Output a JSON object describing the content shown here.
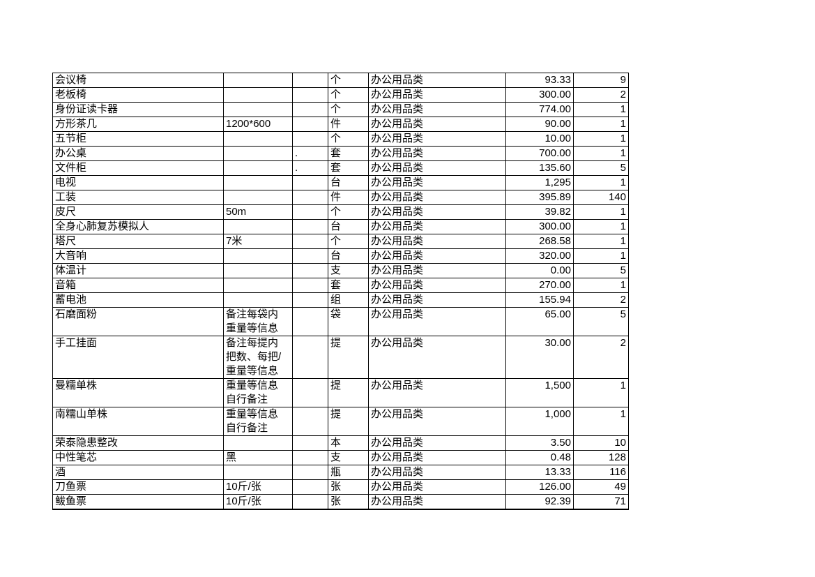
{
  "page": {
    "background_color": "#ffffff",
    "text_color": "#000000",
    "border_color": "#000000"
  },
  "table": {
    "column_keys": [
      "name",
      "spec",
      "note",
      "unit",
      "category",
      "unit_price",
      "quantity"
    ],
    "rows": [
      {
        "name": "会议椅",
        "spec": "",
        "note": "",
        "unit": "个",
        "category": "办公用品类",
        "unit_price": "93.33",
        "quantity": "9"
      },
      {
        "name": "老板椅",
        "spec": "",
        "note": "",
        "unit": "个",
        "category": "办公用品类",
        "unit_price": "300.00",
        "quantity": "2"
      },
      {
        "name": "身份证读卡器",
        "spec": "",
        "note": "",
        "unit": "个",
        "category": "办公用品类",
        "unit_price": "774.00",
        "quantity": "1"
      },
      {
        "name": "方形茶几",
        "spec": "1200*600",
        "note": "",
        "unit": "件",
        "category": "办公用品类",
        "unit_price": "90.00",
        "quantity": "1"
      },
      {
        "name": "五节柜",
        "spec": "",
        "note": "",
        "unit": "个",
        "category": "办公用品类",
        "unit_price": "10.00",
        "quantity": "1"
      },
      {
        "name": "办公桌",
        "spec": "",
        "note": ".",
        "unit": "套",
        "category": "办公用品类",
        "unit_price": "700.00",
        "quantity": "1"
      },
      {
        "name": "文件柜",
        "spec": "",
        "note": ".",
        "unit": "套",
        "category": "办公用品类",
        "unit_price": "135.60",
        "quantity": "5"
      },
      {
        "name": "电视",
        "spec": "",
        "note": "",
        "unit": "台",
        "category": "办公用品类",
        "unit_price": "1,295",
        "quantity": "1"
      },
      {
        "name": "工装",
        "spec": "",
        "note": "",
        "unit": "件",
        "category": "办公用品类",
        "unit_price": "395.89",
        "quantity": "140"
      },
      {
        "name": "皮尺",
        "spec": "50m",
        "note": "",
        "unit": "个",
        "category": "办公用品类",
        "unit_price": "39.82",
        "quantity": "1"
      },
      {
        "name": "全身心肺复苏模拟人",
        "spec": "",
        "note": "",
        "unit": "台",
        "category": "办公用品类",
        "unit_price": "300.00",
        "quantity": "1"
      },
      {
        "name": "塔尺",
        "spec": "7米",
        "note": "",
        "unit": "个",
        "category": "办公用品类",
        "unit_price": "268.58",
        "quantity": "1"
      },
      {
        "name": "大音响",
        "spec": "",
        "note": "",
        "unit": "台",
        "category": "办公用品类",
        "unit_price": "320.00",
        "quantity": "1"
      },
      {
        "name": "体温计",
        "spec": "",
        "note": "",
        "unit": "支",
        "category": "办公用品类",
        "unit_price": "0.00",
        "quantity": "5"
      },
      {
        "name": "音箱",
        "spec": "",
        "note": "",
        "unit": "套",
        "category": "办公用品类",
        "unit_price": "270.00",
        "quantity": "1"
      },
      {
        "name": "蓄电池",
        "spec": "",
        "note": "",
        "unit": "组",
        "category": "办公用品类",
        "unit_price": "155.94",
        "quantity": "2"
      },
      {
        "name": "石磨面粉",
        "spec": "备注每袋内\n重量等信息",
        "note": "",
        "unit": "袋",
        "category": "办公用品类",
        "unit_price": "65.00",
        "quantity": "5"
      },
      {
        "name": "手工挂面",
        "spec": "备注每提内\n把数、每把/\n重量等信息",
        "note": "",
        "unit": "提",
        "category": "办公用品类",
        "unit_price": "30.00",
        "quantity": "2"
      },
      {
        "name": "曼糯单株",
        "spec": "重量等信息\n自行备注",
        "note": "",
        "unit": "提",
        "category": "办公用品类",
        "unit_price": "1,500",
        "quantity": "1"
      },
      {
        "name": "南糯山单株",
        "spec": "重量等信息\n自行备注",
        "note": "",
        "unit": "提",
        "category": "办公用品类",
        "unit_price": "1,000",
        "quantity": "1"
      },
      {
        "name": "荣泰隐患整改",
        "spec": "",
        "note": "",
        "unit": "本",
        "category": "办公用品类",
        "unit_price": "3.50",
        "quantity": "10"
      },
      {
        "name": "中性笔芯",
        "spec": "黑",
        "note": "",
        "unit": "支",
        "category": "办公用品类",
        "unit_price": "0.48",
        "quantity": "128"
      },
      {
        "name": "酒",
        "spec": "",
        "note": "",
        "unit": "瓶",
        "category": "办公用品类",
        "unit_price": "13.33",
        "quantity": "116"
      },
      {
        "name": "刀鱼票",
        "spec": "10斤/张",
        "note": "",
        "unit": "张",
        "category": "办公用品类",
        "unit_price": "126.00",
        "quantity": "49"
      },
      {
        "name": "鲅鱼票",
        "spec": "10斤/张",
        "note": "",
        "unit": "张",
        "category": "办公用品类",
        "unit_price": "92.39",
        "quantity": "71"
      }
    ]
  }
}
